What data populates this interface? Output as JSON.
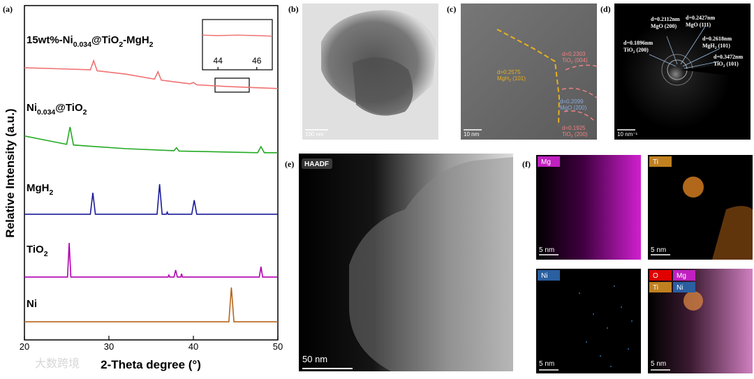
{
  "chart_data": [
    {
      "type": "line",
      "xlabel": "2-Theta degree (°)",
      "ylabel": "Relative Intensity (a.u.)",
      "xlim": [
        20,
        50
      ],
      "xticks": [
        20,
        30,
        40,
        50
      ],
      "ylim": [
        0,
        100
      ],
      "series": [
        {
          "name": "15wt%-Ni0.034@TiO2-MgH2",
          "color": "#f07070",
          "x": [
            20,
            24,
            27.8,
            28.2,
            28.6,
            32,
            35.4,
            35.8,
            36.2,
            39.6,
            40,
            40.4,
            44,
            47,
            50
          ],
          "values": [
            81.4,
            81.1,
            80.8,
            83.5,
            80.5,
            79.5,
            78,
            80.2,
            77.7,
            76.6,
            77,
            76.3,
            75.8,
            75.5,
            75.2
          ]
        },
        {
          "name": "Ni0.034@TiO2",
          "color": "#22aa22",
          "x": [
            20,
            22,
            24,
            25,
            25.4,
            25.8,
            28,
            32,
            37.7,
            38,
            38.3,
            42,
            47.6,
            48,
            48.4,
            50
          ],
          "values": [
            61,
            60,
            59,
            58.5,
            63.7,
            58.3,
            57.9,
            57.2,
            56.6,
            57.5,
            56.5,
            56.3,
            56,
            57.8,
            56,
            56
          ]
        },
        {
          "name": "MgH2",
          "color": "#1a1a9a",
          "x": [
            20,
            27.8,
            28.1,
            28.4,
            35.7,
            36,
            36.3,
            36.8,
            36.9,
            37,
            39.8,
            40.1,
            40.4,
            50
          ],
          "values": [
            37.6,
            37.6,
            44,
            37.6,
            37.6,
            46.6,
            37.6,
            37.6,
            38.2,
            37.6,
            37.6,
            41.8,
            37.6,
            37.6
          ]
        },
        {
          "name": "TiO2",
          "color": "#b000b0",
          "x": [
            20,
            25.1,
            25.3,
            25.5,
            37,
            37.1,
            37.2,
            37.7,
            37.9,
            38.1,
            38.5,
            38.6,
            38.7,
            47.8,
            48,
            48.2,
            50
          ],
          "values": [
            18.8,
            18.8,
            29,
            18.8,
            18.8,
            19.4,
            18.8,
            18.8,
            20.9,
            18.8,
            18.8,
            19.8,
            18.8,
            18.8,
            21.9,
            18.8,
            18.8
          ]
        },
        {
          "name": "Ni",
          "color": "#b5651d",
          "x": [
            20,
            44.2,
            44.5,
            44.8,
            50
          ],
          "values": [
            5.4,
            5.4,
            15.7,
            5.4,
            5.4
          ]
        }
      ]
    },
    {
      "type": "line",
      "xlim": [
        43.2,
        46.8
      ],
      "xticks": [
        44,
        46
      ],
      "ylim": [
        0,
        10
      ],
      "series": [
        {
          "color": "#f07070",
          "x": [
            43.2,
            44,
            45,
            46,
            46.8
          ],
          "values": [
            6.9,
            6.8,
            6.9,
            6.8,
            6.7
          ]
        }
      ]
    }
  ],
  "panel_labels": [
    "(a)",
    "(b)",
    "(c)",
    "(d)",
    "(e)",
    "(f)"
  ],
  "tem": {
    "scale_bar": "100 nm"
  },
  "hrtem": {
    "scale_bar": "10 nm",
    "annotations": [
      [
        "d=0.2575",
        "MgH2 (101)"
      ],
      [
        "d=0.2303",
        "TiO2 (004)"
      ],
      [
        "d=0.2099",
        "MgO (200)"
      ],
      [
        "d=0.1925",
        "TiO2 (200)"
      ]
    ]
  },
  "saed": {
    "scale_bar": "10 nm⁻¹",
    "annotations": [
      [
        "d=0.2112nm",
        "MgO (200)"
      ],
      [
        "d=0.2427nm",
        "MgO (111)"
      ],
      [
        "d=0.1896nm",
        "TiO2 (200)"
      ],
      [
        "d=0.2618nm",
        "MgH2 (101)"
      ],
      [
        "d=0.3472nm",
        "TiO2 (101)"
      ]
    ]
  },
  "haadf": {
    "label": "HAADF",
    "scale_bar": "50 nm"
  },
  "maps": [
    {
      "elements": [
        "Mg"
      ],
      "scale_bar": "5 nm"
    },
    {
      "elements": [
        "Ti"
      ],
      "scale_bar": "5 nm"
    },
    {
      "elements": [
        "Ni"
      ],
      "scale_bar": "5 nm"
    },
    {
      "elements": [
        "O",
        "Mg",
        "Ti",
        "Ni"
      ],
      "scale_bar": "5 nm"
    }
  ],
  "watermark": "大数跨境"
}
